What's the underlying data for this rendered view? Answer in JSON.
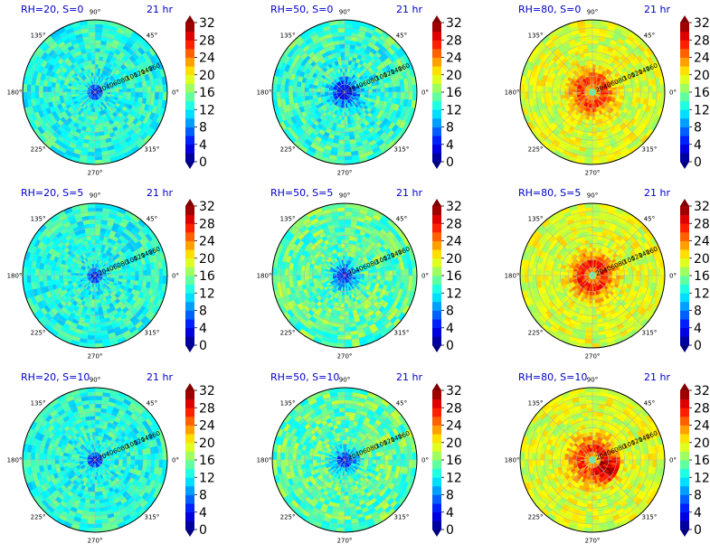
{
  "chart_data": {
    "type": "heatmap",
    "projection": "polar",
    "layout": {
      "rows": 3,
      "cols": 3
    },
    "colormap": "jet",
    "colorbar": {
      "range": [
        0,
        32
      ],
      "ticks": [
        "0",
        "4",
        "8",
        "12",
        "16",
        "20",
        "24",
        "28",
        "32"
      ],
      "extend": "both"
    },
    "radial_ticks": [
      "20",
      "40",
      "60",
      "80",
      "100",
      "120",
      "140",
      "160"
    ],
    "radial_max": 180,
    "angular_ticks": [
      {
        "angle": 0,
        "label": "0°"
      },
      {
        "angle": 45,
        "label": "45°"
      },
      {
        "angle": 90,
        "label": "90°"
      },
      {
        "angle": 135,
        "label": "135°"
      },
      {
        "angle": 180,
        "label": "180°"
      },
      {
        "angle": 225,
        "label": "225°"
      },
      {
        "angle": 270,
        "label": "270°"
      },
      {
        "angle": 315,
        "label": "315°"
      }
    ],
    "panels": [
      {
        "title": "RH=20, S=0",
        "time": "21 hr",
        "rh": 20,
        "s": 0,
        "background": 13,
        "mean_ring": [
          [
            0,
            1
          ],
          [
            25,
            12
          ],
          [
            60,
            13
          ],
          [
            180,
            13
          ]
        ],
        "noise": 3,
        "core_high": 0,
        "hot_angle": null
      },
      {
        "title": "RH=50, S=0",
        "time": "21 hr",
        "rh": 50,
        "s": 0,
        "background": 14,
        "mean_ring": [
          [
            0,
            1
          ],
          [
            20,
            6
          ],
          [
            50,
            13
          ],
          [
            180,
            14
          ]
        ],
        "noise": 3.5,
        "core_high": 0,
        "hot_angle": null
      },
      {
        "title": "RH=80, S=0",
        "time": "21 hr",
        "rh": 80,
        "s": 0,
        "background": 19,
        "mean_ring": [
          [
            0,
            10
          ],
          [
            12,
            22
          ],
          [
            30,
            27
          ],
          [
            50,
            23
          ],
          [
            80,
            19
          ],
          [
            180,
            19
          ]
        ],
        "noise": 2.5,
        "core_high": 28,
        "hot_angle": null
      },
      {
        "title": "RH=20, S=5",
        "time": "21 hr",
        "rh": 20,
        "s": 5,
        "background": 13,
        "mean_ring": [
          [
            0,
            1
          ],
          [
            25,
            12
          ],
          [
            60,
            13
          ],
          [
            180,
            13
          ]
        ],
        "noise": 3,
        "core_high": 0,
        "hot_angle": null
      },
      {
        "title": "RH=50, S=5",
        "time": "21 hr",
        "rh": 50,
        "s": 5,
        "background": 15,
        "mean_ring": [
          [
            0,
            2
          ],
          [
            20,
            8
          ],
          [
            50,
            15
          ],
          [
            180,
            15
          ]
        ],
        "noise": 3.5,
        "core_high": 0,
        "hot_angle": null
      },
      {
        "title": "RH=80, S=5",
        "time": "21 hr",
        "rh": 80,
        "s": 5,
        "background": 19,
        "mean_ring": [
          [
            0,
            10
          ],
          [
            12,
            23
          ],
          [
            30,
            28
          ],
          [
            50,
            23
          ],
          [
            80,
            19
          ],
          [
            180,
            19
          ]
        ],
        "noise": 2.5,
        "core_high": 30,
        "hot_angle": null
      },
      {
        "title": "RH=20, S=10",
        "time": "21 hr",
        "rh": 20,
        "s": 10,
        "background": 13,
        "mean_ring": [
          [
            0,
            1
          ],
          [
            25,
            12
          ],
          [
            60,
            13
          ],
          [
            180,
            13
          ]
        ],
        "noise": 3,
        "core_high": 0,
        "hot_angle": null
      },
      {
        "title": "RH=50, S=10",
        "time": "21 hr",
        "rh": 50,
        "s": 10,
        "background": 15,
        "mean_ring": [
          [
            0,
            2
          ],
          [
            20,
            9
          ],
          [
            50,
            15
          ],
          [
            180,
            15
          ]
        ],
        "noise": 3.5,
        "core_high": 0,
        "hot_angle": null
      },
      {
        "title": "RH=80, S=10",
        "time": "21 hr",
        "rh": 80,
        "s": 10,
        "background": 19,
        "mean_ring": [
          [
            0,
            10
          ],
          [
            12,
            22
          ],
          [
            30,
            26
          ],
          [
            60,
            22
          ],
          [
            90,
            19
          ],
          [
            180,
            19
          ]
        ],
        "noise": 2.5,
        "core_high": 30,
        "hot_angle": 330
      }
    ]
  }
}
